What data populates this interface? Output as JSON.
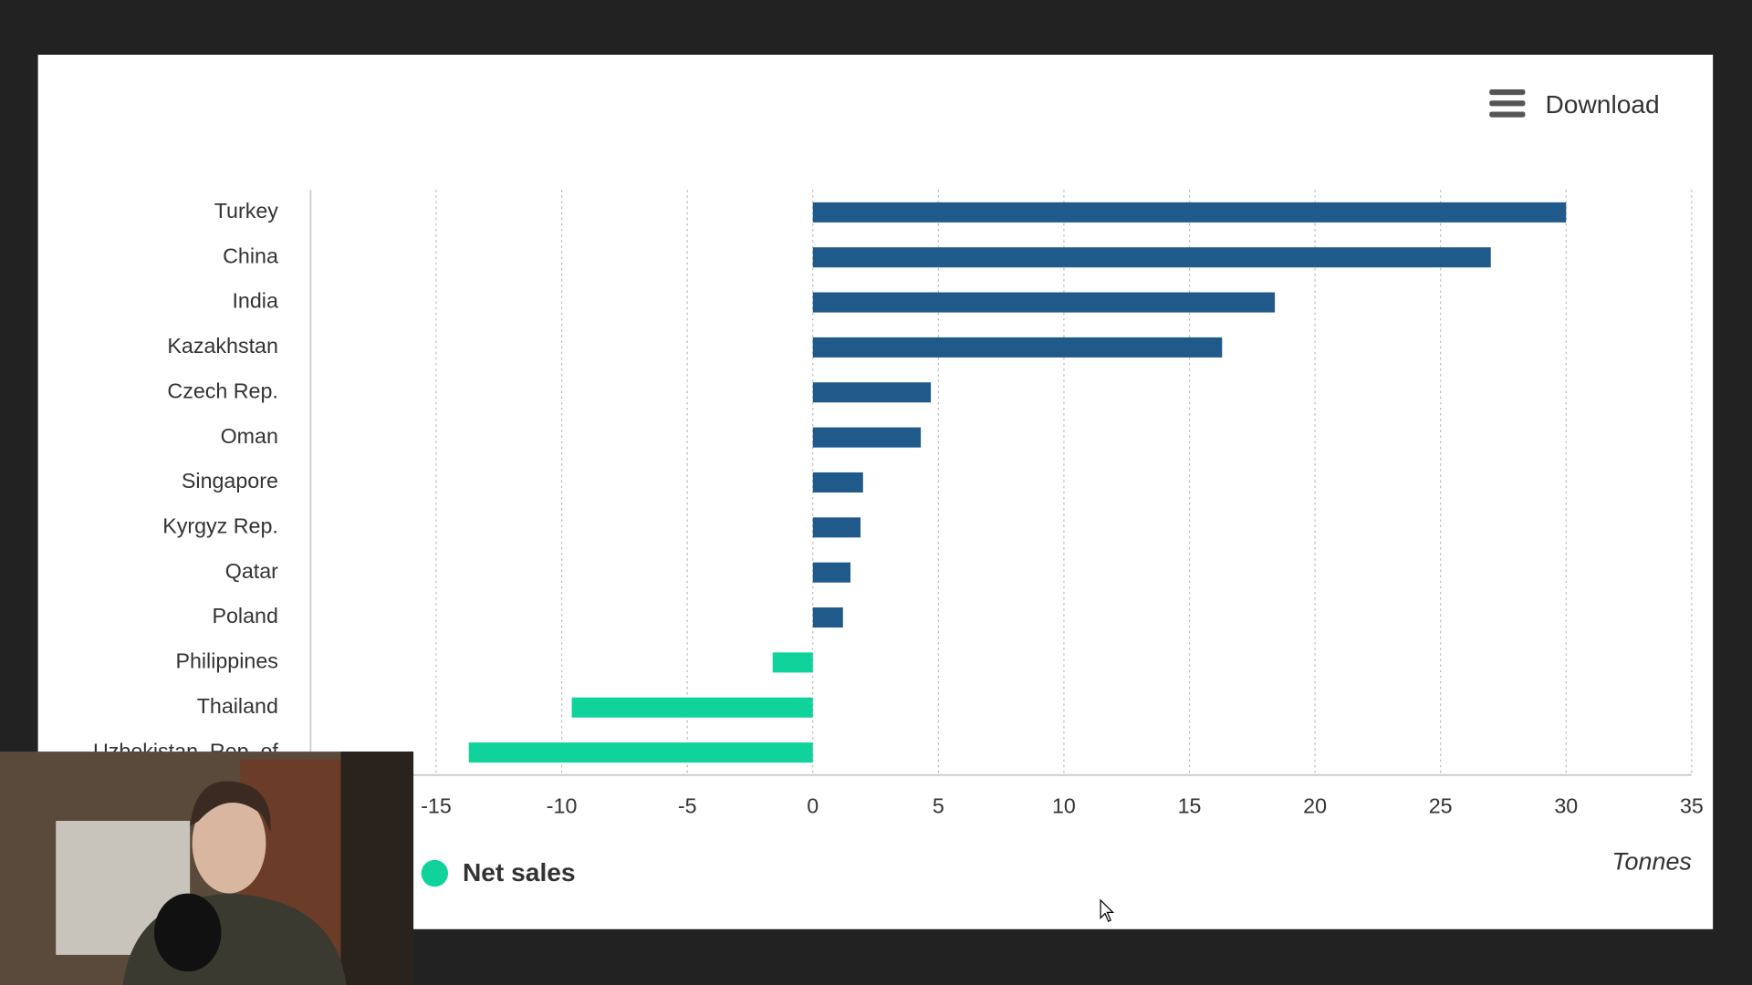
{
  "chart_data": {
    "type": "bar",
    "orientation": "horizontal",
    "categories": [
      "Turkey",
      "China",
      "India",
      "Kazakhstan",
      "Czech Rep.",
      "Oman",
      "Singapore",
      "Kyrgyz Rep.",
      "Qatar",
      "Poland",
      "Philippines",
      "Thailand",
      "Uzbekistan, Rep. of"
    ],
    "values": [
      30.0,
      27.0,
      18.4,
      16.3,
      4.7,
      4.3,
      2.0,
      1.9,
      1.5,
      1.2,
      -1.6,
      -9.6,
      -13.7
    ],
    "positive_color": "#1f5a8b",
    "negative_color": "#0fd39a",
    "xlim": [
      -20,
      35
    ],
    "xticks": [
      -15,
      -10,
      -5,
      0,
      5,
      10,
      15,
      20,
      25,
      30,
      35
    ],
    "grid": true,
    "x_label": "Tonnes",
    "legend": [
      {
        "name": "Net sales",
        "color": "#0fd39a"
      }
    ],
    "legend_position": "bottom-left",
    "download_button": "Download"
  }
}
